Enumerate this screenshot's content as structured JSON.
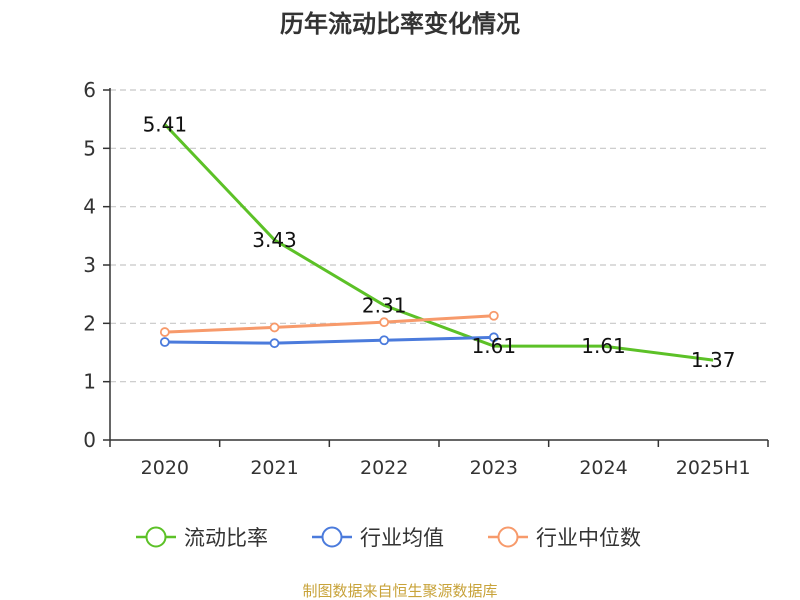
{
  "chart_data": {
    "type": "line",
    "title": "历年流动比率变化情况",
    "categories": [
      "2020",
      "2021",
      "2022",
      "2023",
      "2024",
      "2025H1"
    ],
    "y_ticks": [
      "0",
      "1",
      "2",
      "3",
      "4",
      "5",
      "6"
    ],
    "ylim": [
      0,
      6
    ],
    "grid": true,
    "legend_position": "bottom",
    "series": [
      {
        "name": "流动比率",
        "color": "#5cc127",
        "values": [
          5.41,
          3.43,
          2.31,
          1.61,
          1.61,
          1.37
        ],
        "data_labels": [
          "5.41",
          "3.43",
          "2.31",
          "1.61",
          "1.61",
          "1.37"
        ]
      },
      {
        "name": "行业均值",
        "color": "#4b7bdc",
        "values": [
          1.68,
          1.66,
          1.71,
          1.76,
          null,
          null
        ]
      },
      {
        "name": "行业中位数",
        "color": "#f79a6b",
        "values": [
          1.85,
          1.93,
          2.02,
          2.13,
          null,
          null
        ]
      }
    ],
    "source": "制图数据来自恒生聚源数据库"
  }
}
